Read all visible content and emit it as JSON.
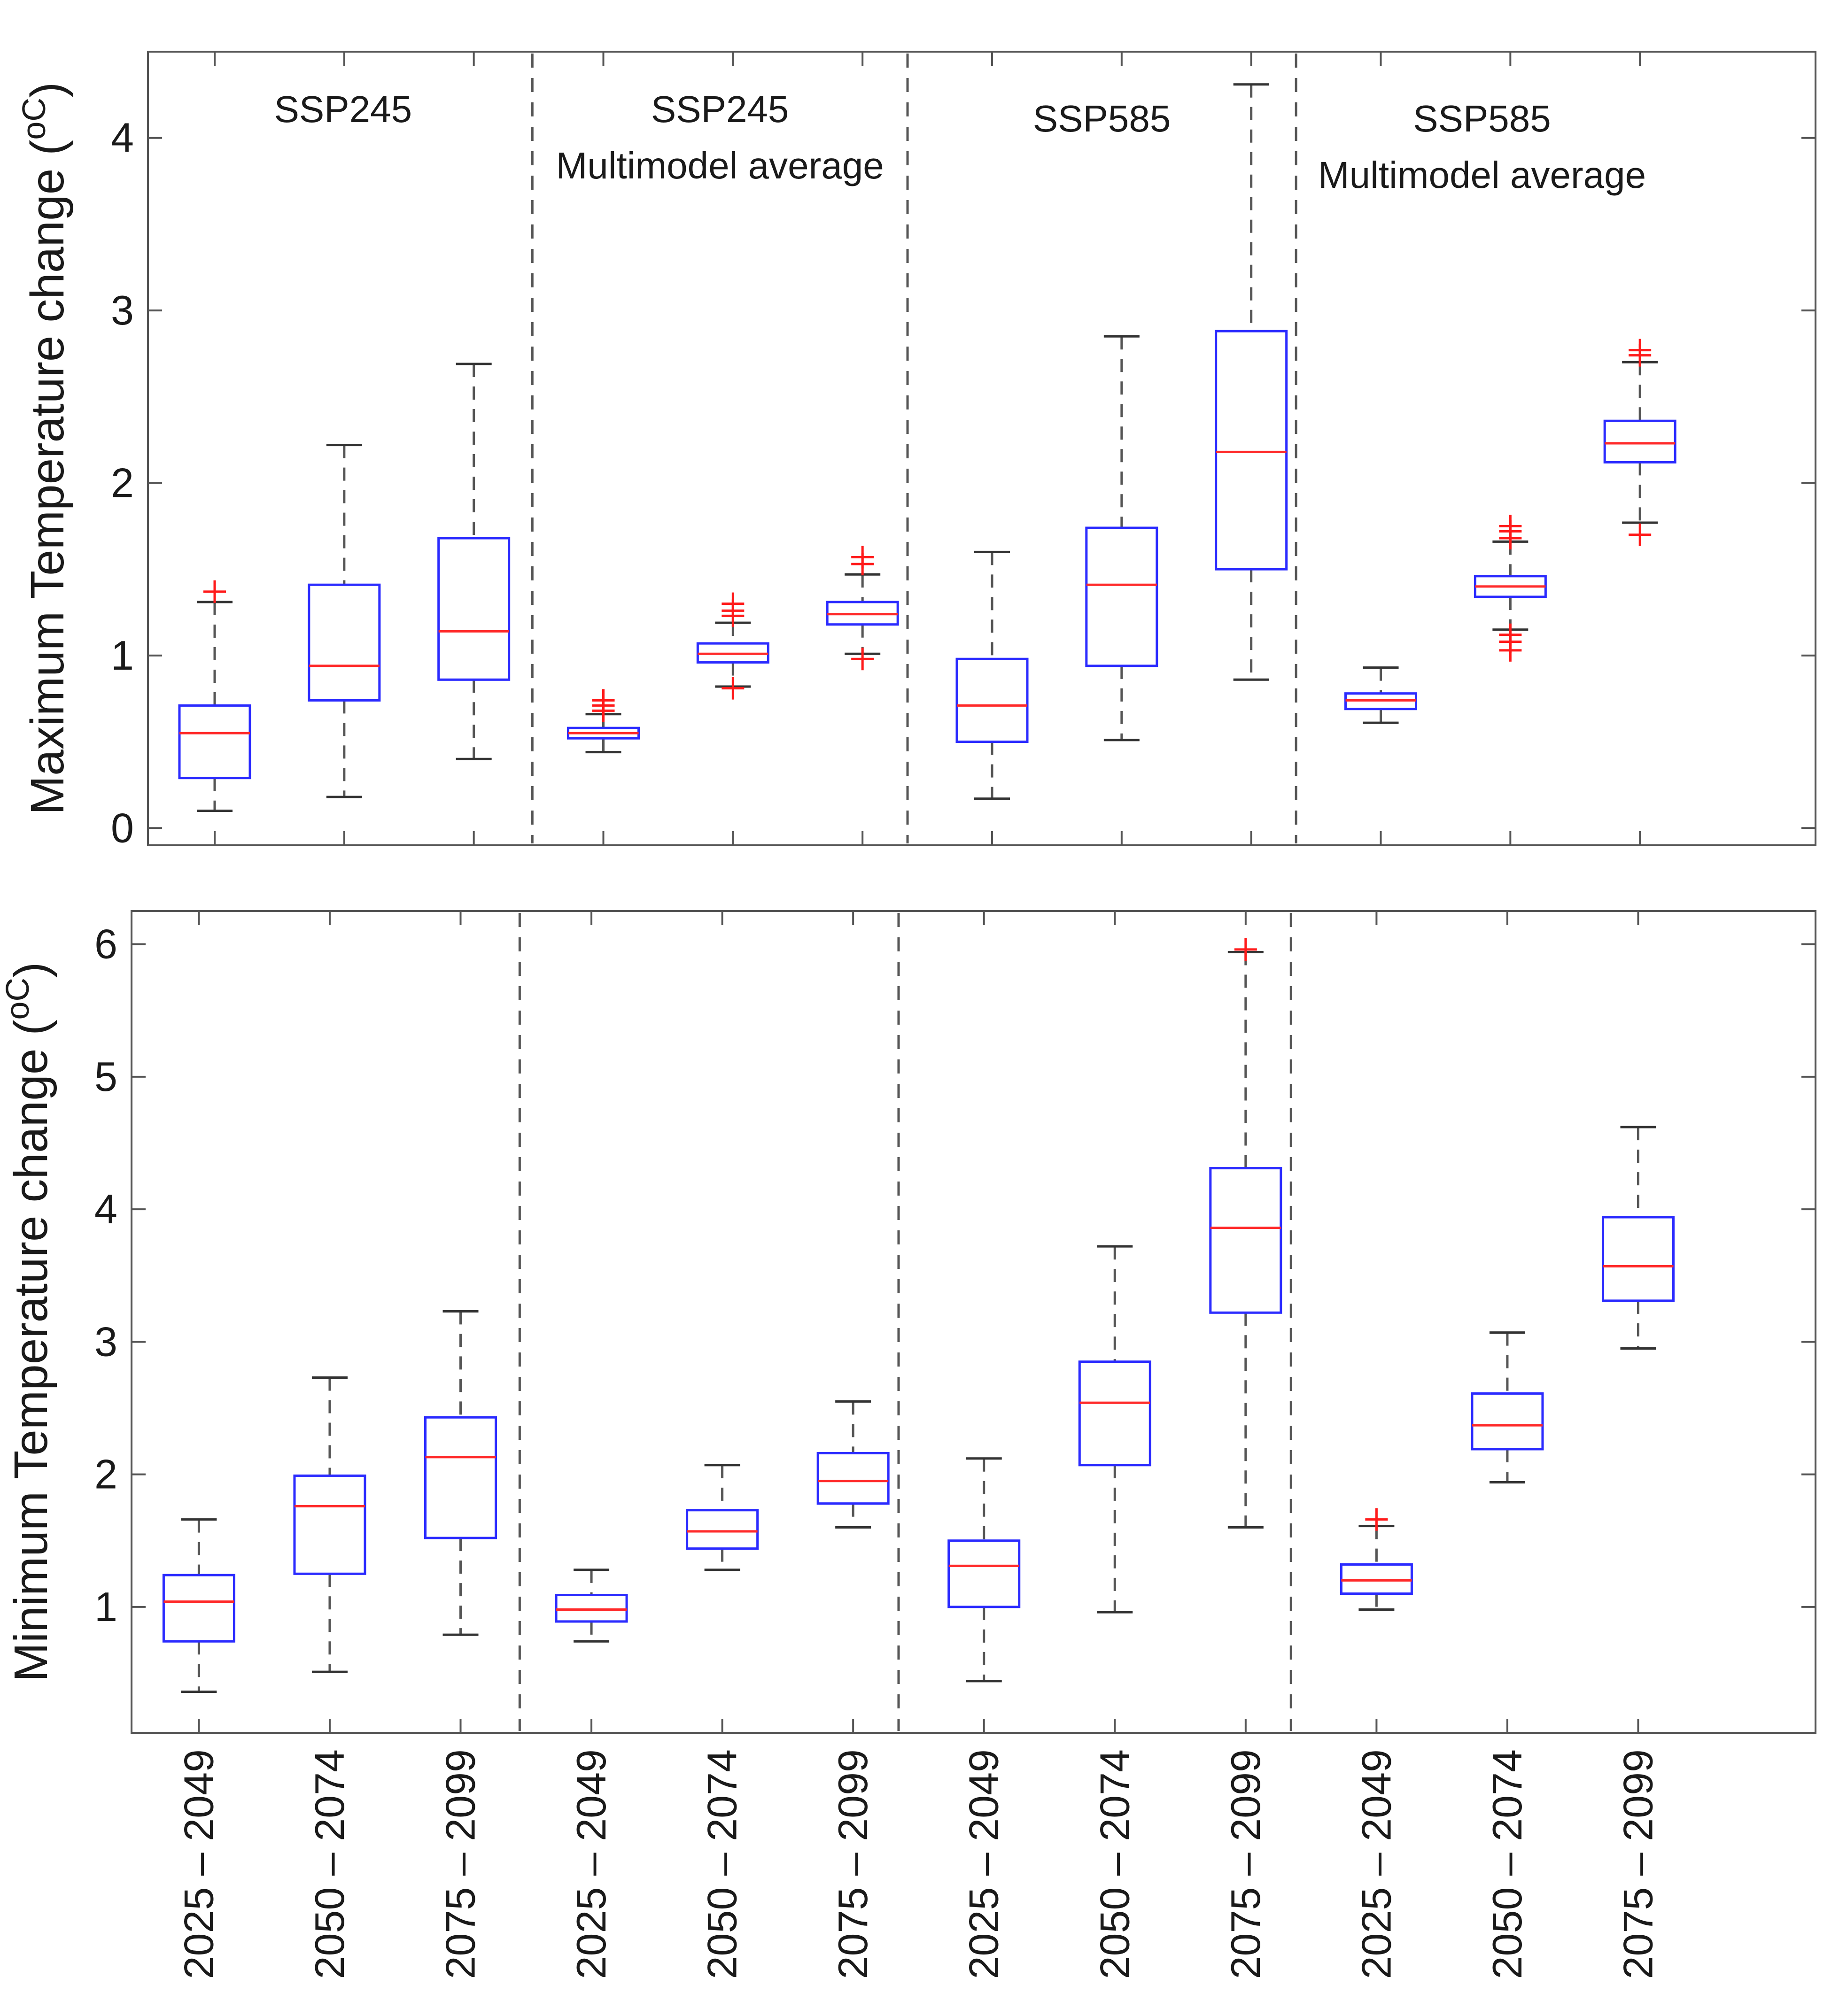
{
  "chart_data": [
    {
      "type": "box",
      "ylabel": "Maximum Temperature change (",
      "ylabel_unit": "oC",
      "ylabel_end": ")",
      "ylim": [
        -0.1,
        4.5
      ],
      "yticks": [
        0,
        1,
        2,
        3,
        4
      ],
      "ytick_labels": [
        "0",
        "1",
        "2",
        "3",
        "4"
      ],
      "groups": [
        {
          "line1": "SSP245",
          "line2": ""
        },
        {
          "line1": "SSP245",
          "line2": "Multimodel average"
        },
        {
          "line1": "SSP585",
          "line2": ""
        },
        {
          "line1": "SSP585",
          "line2": "Multimodel average"
        }
      ],
      "boxes": [
        {
          "group": 0,
          "category": "2025 – 2049",
          "min": 0.1,
          "q1": 0.29,
          "median": 0.55,
          "q3": 0.71,
          "max": 1.31,
          "outliers": [
            1.37
          ]
        },
        {
          "group": 0,
          "category": "2050 – 2074",
          "min": 0.18,
          "q1": 0.74,
          "median": 0.94,
          "q3": 1.41,
          "max": 2.22,
          "outliers": []
        },
        {
          "group": 0,
          "category": "2075 – 2099",
          "min": 0.4,
          "q1": 0.86,
          "median": 1.14,
          "q3": 1.68,
          "max": 2.69,
          "outliers": []
        },
        {
          "group": 1,
          "category": "2025 – 2049",
          "min": 0.44,
          "q1": 0.52,
          "median": 0.55,
          "q3": 0.58,
          "max": 0.66,
          "outliers": [
            0.68,
            0.71,
            0.74
          ]
        },
        {
          "group": 1,
          "category": "2050 – 2074",
          "min": 0.82,
          "q1": 0.96,
          "median": 1.01,
          "q3": 1.07,
          "max": 1.19,
          "outliers": [
            0.81,
            1.23,
            1.26,
            1.3
          ]
        },
        {
          "group": 1,
          "category": "2075 – 2099",
          "min": 1.01,
          "q1": 1.18,
          "median": 1.24,
          "q3": 1.31,
          "max": 1.47,
          "outliers": [
            0.98,
            1.53,
            1.57
          ]
        },
        {
          "group": 2,
          "category": "2025 – 2049",
          "min": 0.17,
          "q1": 0.5,
          "median": 0.71,
          "q3": 0.98,
          "max": 1.6,
          "outliers": []
        },
        {
          "group": 2,
          "category": "2050 – 2074",
          "min": 0.51,
          "q1": 0.94,
          "median": 1.41,
          "q3": 1.74,
          "max": 2.85,
          "outliers": []
        },
        {
          "group": 2,
          "category": "2075 – 2099",
          "min": 0.86,
          "q1": 1.5,
          "median": 2.18,
          "q3": 2.88,
          "max": 4.31,
          "outliers": []
        },
        {
          "group": 3,
          "category": "2025 – 2049",
          "min": 0.61,
          "q1": 0.69,
          "median": 0.74,
          "q3": 0.78,
          "max": 0.93,
          "outliers": []
        },
        {
          "group": 3,
          "category": "2050 – 2074",
          "min": 1.15,
          "q1": 1.34,
          "median": 1.4,
          "q3": 1.46,
          "max": 1.66,
          "outliers": [
            1.03,
            1.08,
            1.12,
            1.68,
            1.72,
            1.75
          ]
        },
        {
          "group": 3,
          "category": "2075 – 2099",
          "min": 1.77,
          "q1": 2.12,
          "median": 2.23,
          "q3": 2.36,
          "max": 2.7,
          "outliers": [
            1.7,
            2.74,
            2.77
          ]
        }
      ]
    },
    {
      "type": "box",
      "ylabel": "Minimum Temperature change (",
      "ylabel_unit": "oC",
      "ylabel_end": ")",
      "ylim": [
        0.05,
        6.25
      ],
      "yticks": [
        1,
        2,
        3,
        4,
        5,
        6
      ],
      "ytick_labels": [
        "1",
        "2",
        "3",
        "4",
        "5",
        "6"
      ],
      "categories": [
        "2025 – 2049",
        "2050 – 2074",
        "2075 – 2099",
        "2025 – 2049",
        "2050 – 2074",
        "2075 – 2099",
        "2025 – 2049",
        "2050 – 2074",
        "2075 – 2099",
        "2025 – 2049",
        "2050 – 2074",
        "2075 – 2099"
      ],
      "boxes": [
        {
          "group": 0,
          "category": "2025 – 2049",
          "min": 0.36,
          "q1": 0.74,
          "median": 1.04,
          "q3": 1.24,
          "max": 1.66,
          "outliers": []
        },
        {
          "group": 0,
          "category": "2050 – 2074",
          "min": 0.51,
          "q1": 1.25,
          "median": 1.76,
          "q3": 1.99,
          "max": 2.73,
          "outliers": []
        },
        {
          "group": 0,
          "category": "2075 – 2099",
          "min": 0.79,
          "q1": 1.52,
          "median": 2.13,
          "q3": 2.43,
          "max": 3.23,
          "outliers": []
        },
        {
          "group": 1,
          "category": "2025 – 2049",
          "min": 0.74,
          "q1": 0.89,
          "median": 0.98,
          "q3": 1.09,
          "max": 1.28,
          "outliers": []
        },
        {
          "group": 1,
          "category": "2050 – 2074",
          "min": 1.28,
          "q1": 1.44,
          "median": 1.57,
          "q3": 1.73,
          "max": 2.07,
          "outliers": []
        },
        {
          "group": 1,
          "category": "2075 – 2099",
          "min": 1.6,
          "q1": 1.78,
          "median": 1.95,
          "q3": 2.16,
          "max": 2.55,
          "outliers": []
        },
        {
          "group": 2,
          "category": "2025 – 2049",
          "min": 0.44,
          "q1": 1.0,
          "median": 1.31,
          "q3": 1.5,
          "max": 2.12,
          "outliers": []
        },
        {
          "group": 2,
          "category": "2050 – 2074",
          "min": 0.96,
          "q1": 2.07,
          "median": 2.54,
          "q3": 2.85,
          "max": 3.72,
          "outliers": []
        },
        {
          "group": 2,
          "category": "2075 – 2099",
          "min": 1.6,
          "q1": 3.22,
          "median": 3.86,
          "q3": 4.31,
          "max": 5.94,
          "outliers": [
            5.96
          ]
        },
        {
          "group": 3,
          "category": "2025 – 2049",
          "min": 0.98,
          "q1": 1.1,
          "median": 1.2,
          "q3": 1.32,
          "max": 1.61,
          "outliers": [
            1.66
          ]
        },
        {
          "group": 3,
          "category": "2050 – 2074",
          "min": 1.94,
          "q1": 2.19,
          "median": 2.37,
          "q3": 2.61,
          "max": 3.07,
          "outliers": []
        },
        {
          "group": 3,
          "category": "2075 – 2099",
          "min": 2.95,
          "q1": 3.31,
          "median": 3.57,
          "q3": 3.94,
          "max": 4.62,
          "outliers": []
        }
      ]
    }
  ]
}
